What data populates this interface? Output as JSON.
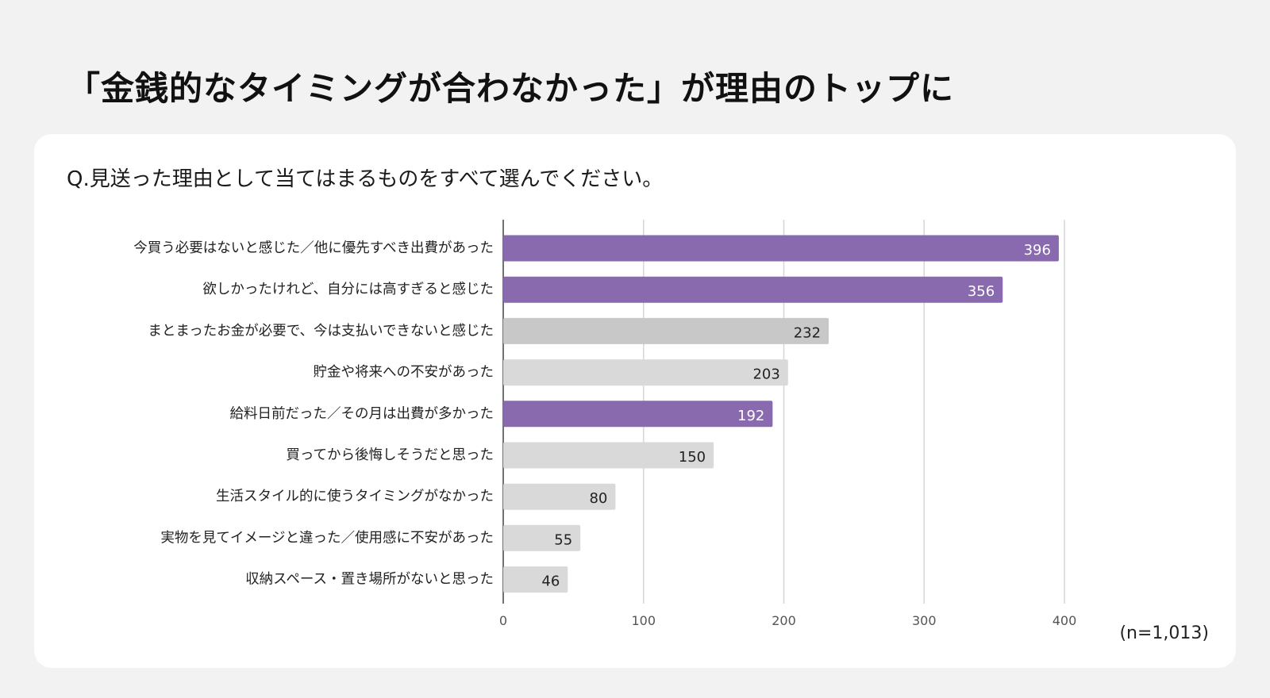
{
  "headline": "「金銭的なタイミングが合わなかった」が理由のトップに",
  "question": "Q.見送った理由として当てはまるものをすべて選んでください。",
  "sample_note": "(n=1,013)",
  "colors": {
    "highlight": "#8a6aae",
    "gray_dark": "#c8c8c8",
    "gray_light": "#d9d9d9",
    "gridline": "#d6d6d6",
    "axis": "#444444"
  },
  "chart_data": {
    "type": "bar",
    "orientation": "horizontal",
    "categories": [
      "今買う必要はないと感じた／他に優先すべき出費があった",
      "欲しかったけれど、自分には高すぎると感じた",
      "まとまったお金が必要で、今は支払いできないと感じた",
      "貯金や将来への不安があった",
      "給料日前だった／その月は出費が多かった",
      "買ってから後悔しそうだと思った",
      "生活スタイル的に使うタイミングがなかった",
      "実物を見てイメージと違った／使用感に不安があった",
      "収納スペース・置き場所がないと思った"
    ],
    "values": [
      396,
      356,
      232,
      203,
      192,
      150,
      80,
      55,
      46
    ],
    "bar_colors": [
      "#8a6aae",
      "#8a6aae",
      "#c8c8c8",
      "#d9d9d9",
      "#8a6aae",
      "#d9d9d9",
      "#d9d9d9",
      "#d9d9d9",
      "#d9d9d9"
    ],
    "highlighted": [
      true,
      true,
      false,
      false,
      true,
      false,
      false,
      false,
      false
    ],
    "xlim": [
      0,
      400
    ],
    "xticks": [
      0,
      100,
      200,
      300,
      400
    ],
    "grid": true
  }
}
